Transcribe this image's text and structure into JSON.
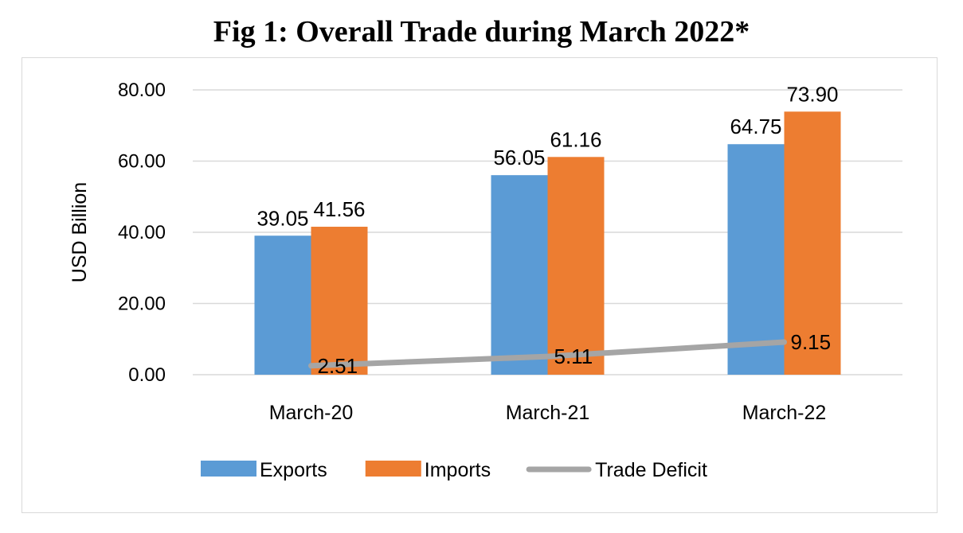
{
  "chart_data": {
    "type": "bar",
    "title": "Fig 1: Overall Trade during March 2022*",
    "ylabel": "USD Billion",
    "xlabel": "",
    "categories": [
      "March-20",
      "March-21",
      "March-22"
    ],
    "ylim": [
      0,
      80
    ],
    "yticks": [
      "0.00",
      "20.00",
      "40.00",
      "60.00",
      "80.00"
    ],
    "grid": true,
    "legend_position": "bottom",
    "series": [
      {
        "name": "Exports",
        "kind": "bar",
        "color": "#5b9bd5",
        "values": [
          39.05,
          56.05,
          64.75
        ],
        "labels": [
          "39.05",
          "56.05",
          "64.75"
        ]
      },
      {
        "name": "Imports",
        "kind": "bar",
        "color": "#ed7d31",
        "values": [
          41.56,
          61.16,
          73.9
        ],
        "labels": [
          "41.56",
          "61.16",
          "73.90"
        ]
      },
      {
        "name": "Trade Deficit",
        "kind": "line",
        "color": "#a5a5a5",
        "values": [
          2.51,
          5.11,
          9.15
        ],
        "labels": [
          "2.51",
          "5.11",
          "9.15"
        ]
      }
    ]
  }
}
